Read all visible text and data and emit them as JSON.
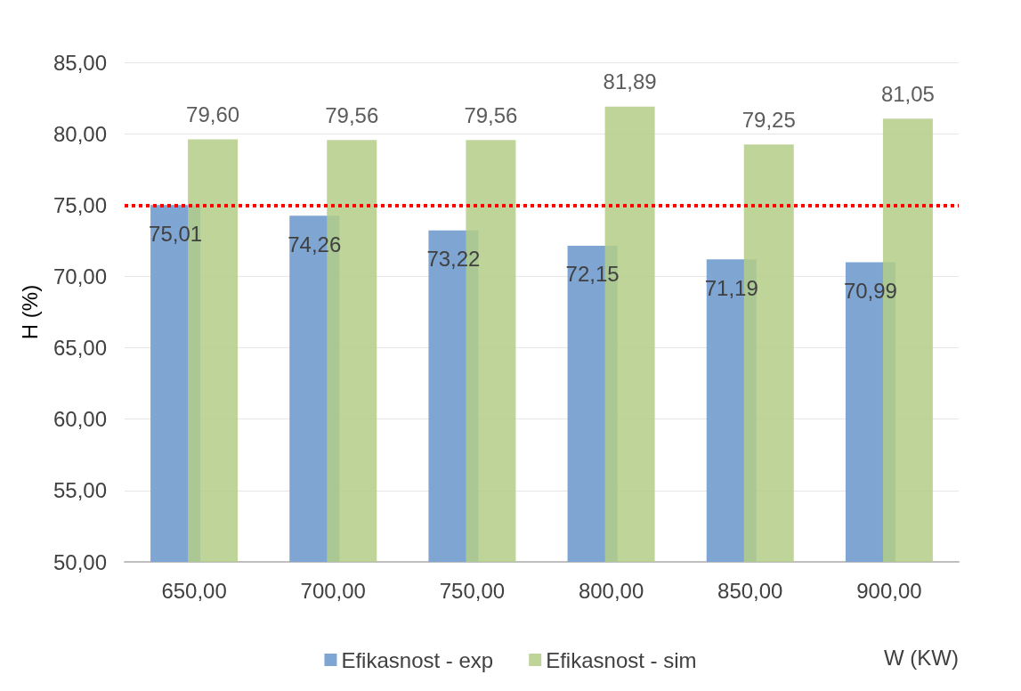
{
  "chart_data": {
    "type": "bar",
    "ylabel": "H (%)",
    "xlabel": "W (KW)",
    "categories": [
      "650,00",
      "700,00",
      "750,00",
      "800,00",
      "850,00",
      "900,00"
    ],
    "series": [
      {
        "name": "Efikasnost - exp",
        "color": "#7fa5d3",
        "values": [
          75.01,
          74.26,
          73.22,
          72.15,
          71.19,
          70.99
        ],
        "value_labels": [
          "75,01",
          "74,26",
          "73,22",
          "72,15",
          "71,19",
          "70,99"
        ]
      },
      {
        "name": "Efikasnost - sim",
        "color": "#b3cd87",
        "values": [
          79.6,
          79.56,
          79.56,
          81.89,
          79.25,
          81.05
        ],
        "value_labels": [
          "79,60",
          "79,56",
          "79,56",
          "81,89",
          "79,25",
          "81,05"
        ]
      }
    ],
    "ylim": [
      50,
      85
    ],
    "yticks": [
      {
        "value": 50,
        "label": "50,00"
      },
      {
        "value": 55,
        "label": "55,00"
      },
      {
        "value": 60,
        "label": "60,00"
      },
      {
        "value": 65,
        "label": "65,00"
      },
      {
        "value": 70,
        "label": "70,00"
      },
      {
        "value": 75,
        "label": "75,00"
      },
      {
        "value": 80,
        "label": "80,00"
      },
      {
        "value": 85,
        "label": "85,00"
      }
    ],
    "ref_lines": [
      {
        "axis": "y",
        "value": 75,
        "color": "#ff0000",
        "line_style": "dotted"
      }
    ],
    "grid": "y",
    "legend": "bottom"
  }
}
